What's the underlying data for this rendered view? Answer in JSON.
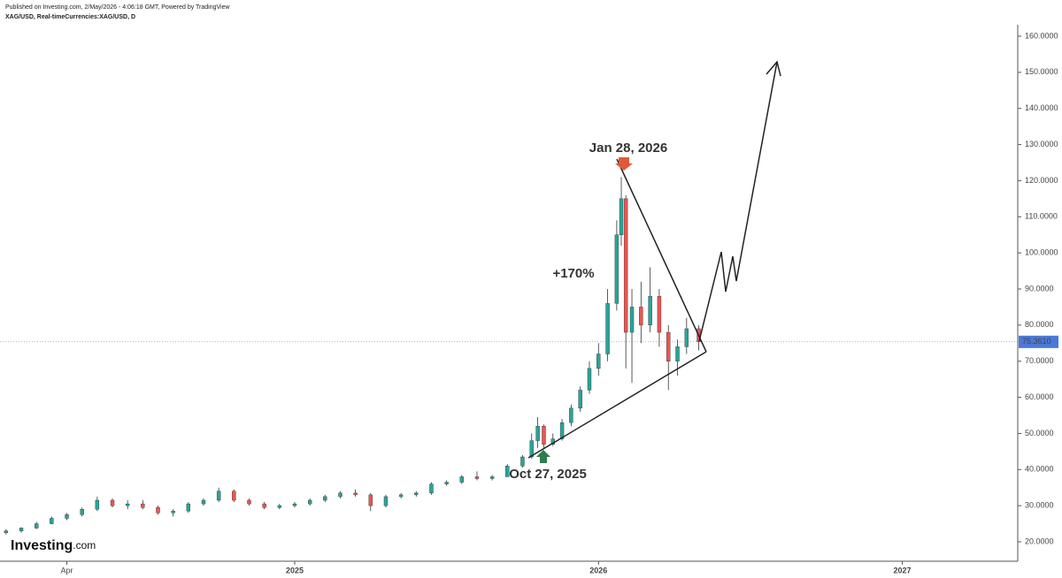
{
  "header": {
    "published": "Published on Investing.com, 2/May/2026 - 4:06:18 GMT, Powered by TradingView",
    "symbol": "XAG/USD, Real-timeCurrencies:XAG/USD, D"
  },
  "logo": {
    "brand": "Investing",
    "suffix": ".com"
  },
  "chart_data": {
    "type": "candlestick",
    "x": [
      2024.05,
      2024.1,
      2024.15,
      2024.2,
      2024.25,
      2024.3,
      2024.35,
      2024.4,
      2024.45,
      2024.5,
      2024.55,
      2024.6,
      2024.65,
      2024.7,
      2024.75,
      2024.8,
      2024.85,
      2024.9,
      2024.95,
      2025.0,
      2025.05,
      2025.1,
      2025.15,
      2025.2,
      2025.25,
      2025.3,
      2025.35,
      2025.4,
      2025.45,
      2025.5,
      2025.55,
      2025.6,
      2025.65,
      2025.7,
      2025.75,
      2025.78,
      2025.8,
      2025.82,
      2025.85,
      2025.88,
      2025.91,
      2025.94,
      2025.97,
      2026.0,
      2026.03,
      2026.06,
      2026.075,
      2026.09,
      2026.11,
      2026.14,
      2026.17,
      2026.2,
      2026.23,
      2026.26,
      2026.29,
      2026.33
    ],
    "open": [
      22.5,
      23,
      23.8,
      25,
      26.5,
      27.5,
      29,
      31.5,
      30,
      30.5,
      29.5,
      28,
      28.5,
      30.5,
      31.5,
      34,
      31.5,
      30.5,
      29.5,
      30,
      30.5,
      31.5,
      32.5,
      33.5,
      33,
      30,
      32.5,
      33,
      33.5,
      36,
      36.5,
      38,
      37.5,
      38,
      41,
      43.5,
      48,
      52,
      47,
      48.5,
      53,
      57,
      62,
      68,
      72,
      86,
      105,
      115,
      78,
      85,
      80,
      88,
      78,
      70,
      74,
      79
    ],
    "high": [
      23.5,
      24,
      25.5,
      27,
      28,
      29.5,
      32.5,
      32,
      31.5,
      31.5,
      30,
      29,
      31,
      32,
      35,
      34.5,
      32,
      31,
      30.5,
      31,
      32,
      33,
      34,
      34.5,
      33.5,
      33,
      33.5,
      34,
      36.5,
      37,
      38.5,
      39.5,
      38.5,
      41.5,
      44,
      50,
      54.5,
      52.5,
      50,
      54,
      58,
      63,
      70,
      75,
      90,
      109,
      121,
      116,
      90,
      92,
      96,
      90,
      80,
      76,
      82,
      80
    ],
    "low": [
      22,
      22.5,
      23.5,
      24.8,
      26,
      27,
      28.5,
      29.5,
      29,
      29,
      27.5,
      27,
      28,
      30,
      31,
      31,
      30,
      29,
      29,
      29.5,
      30,
      31,
      32,
      32.5,
      28.5,
      29.5,
      32,
      32.5,
      33,
      35.5,
      36,
      37,
      37,
      38,
      40.5,
      43,
      46,
      46,
      46.5,
      48,
      52,
      56,
      61,
      66,
      70,
      84,
      102,
      68,
      64,
      75,
      78,
      74,
      62,
      66,
      72,
      73
    ],
    "close": [
      23,
      23.8,
      25,
      26.5,
      27.5,
      29,
      31.5,
      30,
      30.5,
      29.5,
      28,
      28.5,
      30.5,
      31.5,
      34,
      31.5,
      30.5,
      29.5,
      30,
      30.5,
      31.5,
      32.5,
      33.5,
      33,
      30,
      32.5,
      33,
      33.5,
      36,
      36.5,
      38,
      37.5,
      38,
      41,
      43.5,
      48,
      52,
      47,
      48.5,
      53,
      57,
      62,
      68,
      72,
      86,
      105,
      115,
      78,
      85,
      80,
      88,
      78,
      70,
      74,
      79,
      75.36
    ],
    "up_color": "#26a69a",
    "down_color": "#ef5350",
    "last_price": {
      "value": 75.361,
      "label": "75.3610"
    },
    "xlim": [
      2024.03,
      2027.38
    ],
    "xticks": [
      {
        "value": 2024.25,
        "label": "Apr"
      },
      2025,
      2026,
      2027
    ],
    "ylim": [
      20,
      160
    ],
    "yticks": [
      {
        "value": 20,
        "label": "20.0000"
      },
      {
        "value": 30,
        "label": "30.0000"
      },
      {
        "value": 40,
        "label": "40.0000"
      },
      {
        "value": 50,
        "label": "50.0000"
      },
      {
        "value": 60,
        "label": "60.0000"
      },
      {
        "value": 70,
        "label": "70.0000"
      },
      {
        "value": 80,
        "label": "80.0000"
      },
      {
        "value": 90,
        "label": "90.0000"
      },
      {
        "value": 100,
        "label": "100.0000"
      },
      {
        "value": 110,
        "label": "110.0000"
      },
      {
        "value": 120,
        "label": "120.0000"
      },
      {
        "value": 130,
        "label": "130.0000"
      },
      {
        "value": 140,
        "label": "140.0000"
      },
      {
        "value": 150,
        "label": "150.0000"
      },
      {
        "value": 160,
        "label": "160.0000"
      }
    ],
    "annotations": [
      "Jan 28, 2026",
      "+170%",
      "Oct 27, 2025"
    ]
  }
}
